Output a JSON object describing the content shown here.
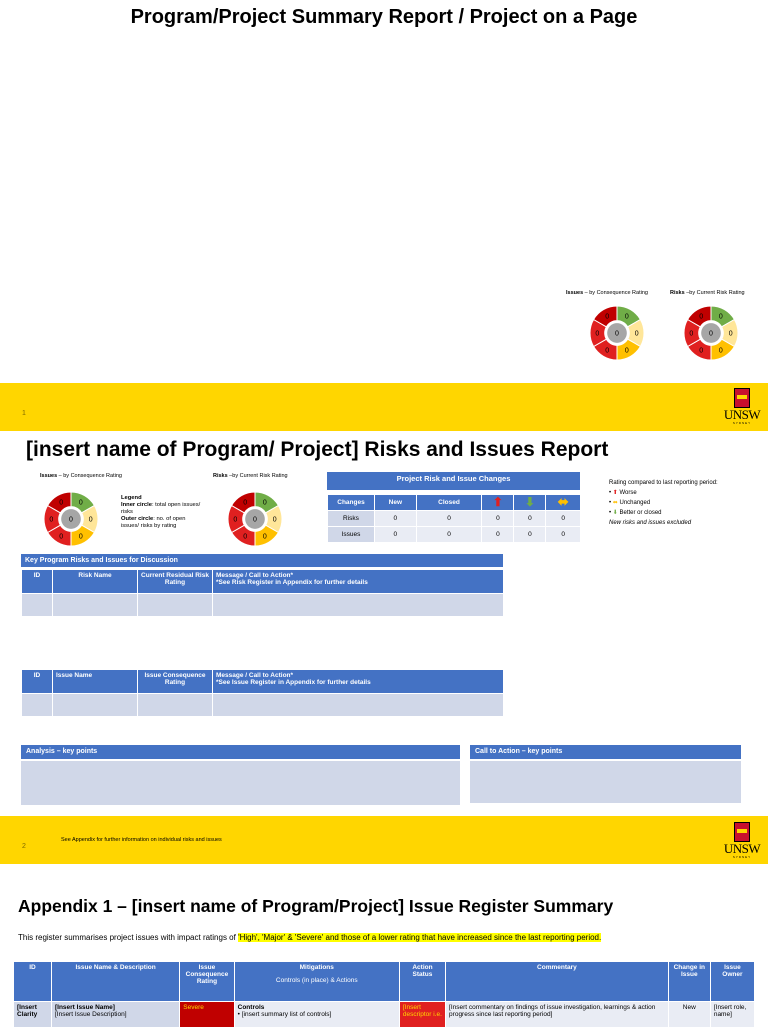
{
  "slide1": {
    "title": "Program/Project Summary Report / Project on a Page",
    "issues_donut_label_bold": "Issues",
    "issues_donut_label": " – by Consequence Rating",
    "risks_donut_label_bold": "Risks",
    "risks_donut_label": " –by Current Risk Rating",
    "page_number": "1"
  },
  "donut_values": {
    "center": "0",
    "segment": "0"
  },
  "colors": {
    "band": "#FFD600",
    "header_blue": "#4472C4",
    "light_grey": "#D0D7E8",
    "severe": "#C00000",
    "red": "#E02020",
    "orange": "#FFC000",
    "light_yellow": "#FFE699",
    "green": "#70AD47"
  },
  "slide2": {
    "title": "[insert name of Program/ Project] Risks and Issues Report",
    "issues_donut_label_bold": "Issues",
    "issues_donut_label": " – by Consequence Rating",
    "risks_donut_label_bold": "Risks",
    "risks_donut_label": " –by Current Risk Rating",
    "legend": {
      "title": "Legend",
      "inner_bold": "Inner circle",
      "inner_text": ": total open issues/ risks",
      "outer_bold": "Outer circle",
      "outer_text": ": no. of open issues/ risks by rating"
    },
    "changes_table": {
      "title": "Project Risk and Issue Changes",
      "headers": [
        "Changes",
        "New",
        "Closed"
      ],
      "rows": [
        {
          "label": "Risks",
          "values": [
            "0",
            "0",
            "0",
            "0",
            "0"
          ]
        },
        {
          "label": "Issues",
          "values": [
            "0",
            "0",
            "0",
            "0",
            "0"
          ]
        }
      ]
    },
    "rating_key": {
      "title": "Rating compared to last reporting period:",
      "worse": "Worse",
      "unchanged": "Unchanged",
      "better": "Better or closed",
      "note": "New risks and issues excluded"
    },
    "risks_table": {
      "title": "Key Program Risks and Issues for Discussion",
      "headers": [
        "ID",
        "Risk Name",
        "Current Residual Risk Rating",
        "Message / Call to Action*",
        "*See Risk Register in Appendix for further details"
      ]
    },
    "issues_table": {
      "headers": [
        "ID",
        "Issue Name",
        "Issue Consequence Rating",
        "Message / Call to Action*",
        "*See Issue Register in Appendix for further details"
      ]
    },
    "analysis_title": "Analysis – key points",
    "call_to_action_title": "Call to Action – key points",
    "footer_note": "See Appendix for further information on individual risks and issues",
    "page_number": "2"
  },
  "logo": {
    "word": "UNSW",
    "sub": "SYDNEY"
  },
  "slide3": {
    "title": "Appendix 1 – [insert name of Program/Project] Issue Register Summary",
    "intro_prefix": "This register summarises project issues with impact ratings of ",
    "intro_highlight": "'High', 'Major' & 'Severe' and those of a lower rating that have increased since the last reporting period.",
    "headers": [
      "ID",
      "Issue Name & Description",
      "Issue Consequence Rating",
      "Mitigations",
      "Controls (in place) & Actions",
      "Action Status",
      "Commentary",
      "Change in Issue",
      "Issue Owner"
    ],
    "row": {
      "id": "[Insert Clarity",
      "name": "[Insert Issue Name]",
      "description": "[Insert Issue Description]",
      "rating": "Severe",
      "controls_title": "Controls",
      "controls_item": "[insert summary list of controls]",
      "status": "[Insert descriptor i.e.",
      "commentary": "[Insert commentary on findings of issue investigation, learnings & action progress since last reporting period]",
      "change": "New",
      "owner": "[Insert role, name]"
    }
  }
}
